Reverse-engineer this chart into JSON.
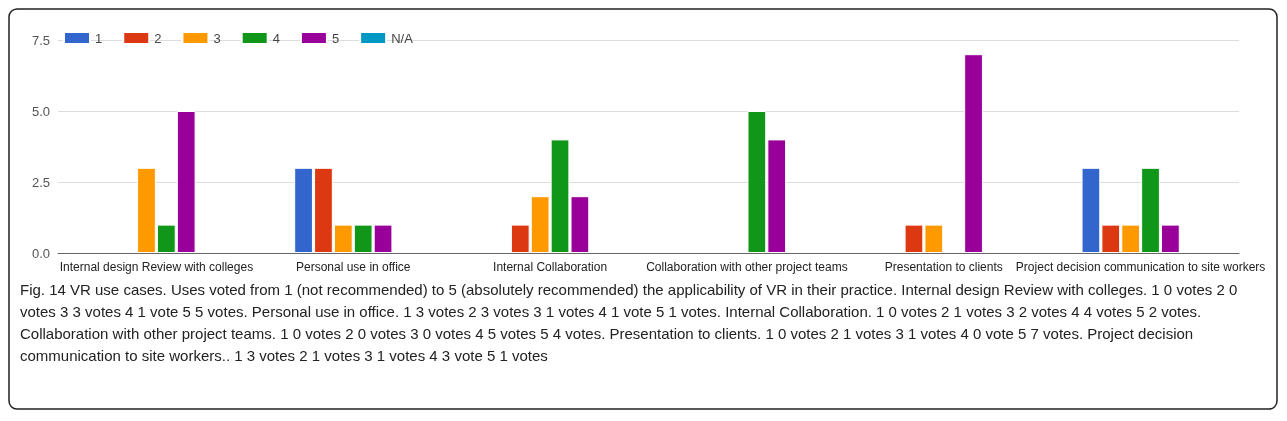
{
  "chart_data": {
    "type": "bar",
    "categories": [
      "Internal design Review with colleges",
      "Personal use in office",
      "Internal Collaboration",
      "Collaboration with other project teams",
      "Presentation to clients",
      "Project decision communication to site workers"
    ],
    "series": [
      {
        "name": "1",
        "color": "#3366cc",
        "values": [
          0,
          3,
          0,
          0,
          0,
          3
        ]
      },
      {
        "name": "2",
        "color": "#dc3912",
        "values": [
          0,
          3,
          1,
          0,
          1,
          1
        ]
      },
      {
        "name": "3",
        "color": "#ff9900",
        "values": [
          3,
          1,
          2,
          0,
          1,
          1
        ]
      },
      {
        "name": "4",
        "color": "#109618",
        "values": [
          1,
          1,
          4,
          5,
          0,
          3
        ]
      },
      {
        "name": "5",
        "color": "#990099",
        "values": [
          5,
          1,
          2,
          4,
          7,
          1
        ]
      },
      {
        "name": "N/A",
        "color": "#0099c6",
        "values": [
          0,
          0,
          0,
          0,
          0,
          0
        ]
      }
    ],
    "ylim": [
      0,
      7.5
    ],
    "yticks": [
      {
        "value": 0,
        "label": "0.0"
      },
      2.5,
      {
        "value": 5,
        "label": "5.0"
      },
      7.5
    ],
    "grid": "y",
    "legend": "top left",
    "annotations": [
      "Fig. 14 VR use cases. Uses voted from 1 (not recommended) to 5 (absolutely recommended) the applicability of VR in their practice. Internal design Review with colleges. 1 0 votes 2 0 votes 3 3 votes 4 1 vote 5 5 votes. Personal use in office. 1 3 votes 2 3 votes 3 1 votes 4 1 vote 5 1 votes. Internal Collaboration. 1 0 votes 2 1 votes 3 2 votes 4 4 votes 5 2 votes. Collaboration with other project teams. 1 0 votes 2 0 votes 3 0 votes 4 5 votes 5 4 votes. Presentation to clients. 1 0 votes 2 1 votes 3 1 votes 4 0 vote 5 7 votes. Project decision communication to site workers.. 1 3 votes 2 1 votes 3 1 votes 4 3 vote 5 1 votes"
    ]
  }
}
